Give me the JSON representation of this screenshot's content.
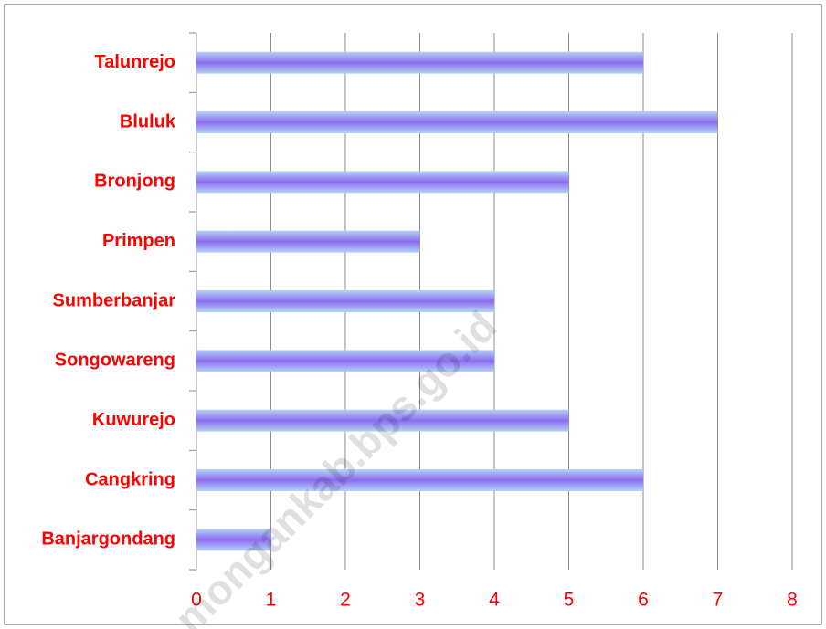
{
  "chart_data": {
    "type": "bar",
    "orientation": "horizontal",
    "categories": [
      "Talunrejo",
      "Bluluk",
      "Bronjong",
      "Primpen",
      "Sumberbanjar",
      "Songowareng",
      "Kuwurejo",
      "Cangkring",
      "Banjargondang"
    ],
    "values": [
      6,
      7,
      5,
      3,
      4,
      4,
      5,
      6,
      1
    ],
    "color": "#8a6cf0",
    "label_color": "#ff0000",
    "xlim": [
      0,
      8
    ],
    "xticks": [
      0,
      1,
      2,
      3,
      4,
      5,
      6,
      7,
      8
    ],
    "grid": true,
    "watermark": "mongankab.bps.go.id"
  }
}
